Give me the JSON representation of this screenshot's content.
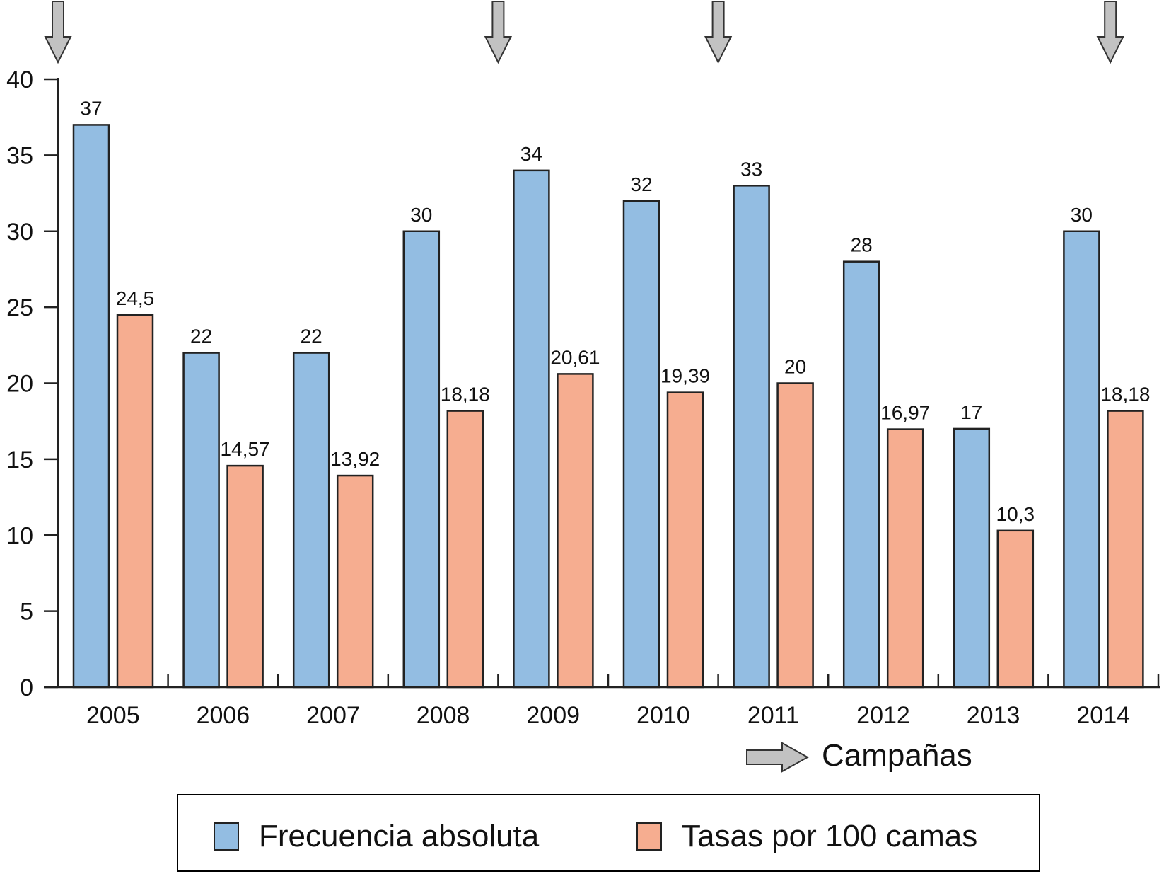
{
  "chart_data": {
    "type": "bar",
    "categories": [
      "2005",
      "2006",
      "2007",
      "2008",
      "2009",
      "2010",
      "2011",
      "2012",
      "2013",
      "2014"
    ],
    "series": [
      {
        "name": "Frecuencia absoluta",
        "color": "#93bde2",
        "values": [
          37,
          22,
          22,
          30,
          34,
          32,
          33,
          28,
          17,
          30
        ],
        "labels": [
          "37",
          "22",
          "22",
          "30",
          "34",
          "32",
          "33",
          "28",
          "17",
          "30"
        ]
      },
      {
        "name": "Tasas por 100 camas",
        "color": "#f6ad90",
        "values": [
          24.5,
          14.57,
          13.92,
          18.18,
          20.61,
          19.39,
          20,
          16.97,
          10.3,
          18.18
        ],
        "labels": [
          "24,5",
          "14,57",
          "13,92",
          "18,18",
          "20,61",
          "19,39",
          "20",
          "16,97",
          "10,3",
          "18,18"
        ]
      }
    ],
    "ylim": [
      0,
      40
    ],
    "yticks": [
      0,
      5,
      10,
      15,
      20,
      25,
      30,
      35,
      40
    ],
    "campaign_years": [
      "2005",
      "2009",
      "2011",
      "2014"
    ],
    "campaign_label": "Campañas",
    "legend_position": "bottom",
    "grid": false
  },
  "legend": {
    "series1_label": "Frecuencia absoluta",
    "series2_label": "Tasas por 100 camas"
  },
  "icons": {
    "campaign_marker": "down-arrow-icon",
    "campaign_legend": "right-arrow-icon"
  }
}
